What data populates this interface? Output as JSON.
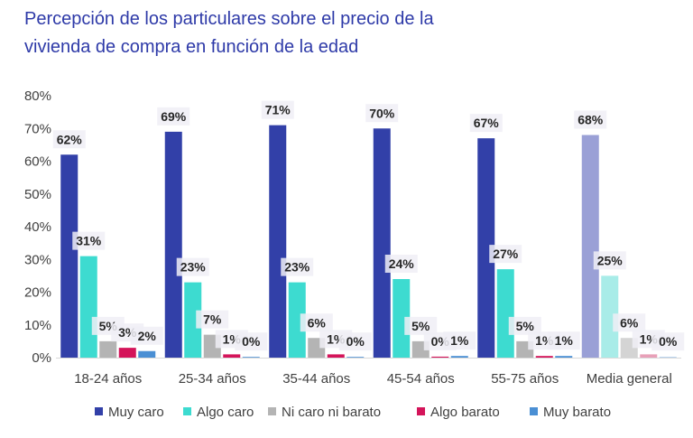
{
  "chart_data": {
    "type": "bar",
    "title": "Percepción de los particulares sobre el precio de la vivienda de compra en función de la edad",
    "title_lines": [
      "Percepción de los particulares sobre el precio de la",
      "vivienda de compra en función de la edad"
    ],
    "categories": [
      "18-24 años",
      "25-34 años",
      "35-44 años",
      "45-54 años",
      "55-75 años",
      "Media general"
    ],
    "ylim": [
      0,
      80
    ],
    "yticks": [
      0,
      10,
      20,
      30,
      40,
      50,
      60,
      70,
      80
    ],
    "ytick_labels": [
      "0%",
      "10%",
      "20%",
      "30%",
      "40%",
      "50%",
      "60%",
      "70%",
      "80%"
    ],
    "xlabel": "",
    "ylabel": "",
    "legend_position": "bottom",
    "series": [
      {
        "name": "Muy caro",
        "color": "#3240a8",
        "highlight_color": "#9aa0d6",
        "values": [
          62,
          69,
          71,
          70,
          67,
          68
        ],
        "labels": [
          "62%",
          "69%",
          "71%",
          "70%",
          "67%",
          "68%"
        ]
      },
      {
        "name": "Algo caro",
        "color": "#3ddbd0",
        "highlight_color": "#a8ece8",
        "values": [
          31,
          23,
          23,
          24,
          27,
          25
        ],
        "labels": [
          "31%",
          "23%",
          "23%",
          "24%",
          "27%",
          "25%"
        ]
      },
      {
        "name": "Ni caro ni barato",
        "color": "#b4b4b4",
        "highlight_color": "#d4d4d4",
        "values": [
          5,
          7,
          6,
          5,
          5,
          6
        ],
        "labels": [
          "5%",
          "7%",
          "6%",
          "5%",
          "5%",
          "6%"
        ]
      },
      {
        "name": "Algo barato",
        "color": "#d4145a",
        "highlight_color": "#e8a0b8",
        "values": [
          3,
          1,
          1,
          0.3,
          0.5,
          1
        ],
        "labels": [
          "3%",
          "1%",
          "1%",
          "0%",
          "1%",
          "1%"
        ]
      },
      {
        "name": "Muy barato",
        "color": "#4a8fd4",
        "highlight_color": "#a8c8ea",
        "values": [
          2,
          0.2,
          0.2,
          0.5,
          0.5,
          0.2
        ],
        "labels": [
          "2%",
          "0%",
          "0%",
          "1%",
          "1%",
          "0%"
        ]
      }
    ],
    "highlighted_category": "Media general"
  }
}
